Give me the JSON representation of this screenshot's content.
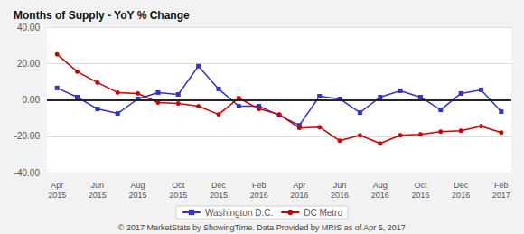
{
  "chart_data": {
    "type": "line",
    "title": "Months of Supply - YoY % Change",
    "annotations": [
      "© 2017 MarketStats by ShowingTime. Data Provided by MRIS as of Apr 5, 2017"
    ],
    "categories": [
      "Apr\n2015",
      null,
      "Jun\n2015",
      null,
      "Aug\n2015",
      null,
      "Oct\n2015",
      null,
      "Dec\n2015",
      null,
      "Feb\n2016",
      null,
      "Apr\n2016",
      null,
      "Jun\n2016",
      null,
      "Aug\n2016",
      null,
      "Oct\n2016",
      null,
      "Dec\n2016",
      null,
      "Feb\n2017"
    ],
    "series": [
      {
        "name": "Washington D.C.",
        "color": "#3333cc",
        "marker": "square",
        "values": [
          6.5,
          1.5,
          -5.0,
          -7.5,
          0.5,
          4.0,
          3.0,
          18.5,
          6.0,
          -3.5,
          -3.5,
          -8.5,
          -14.0,
          2.0,
          0.5,
          -7.0,
          1.5,
          5.0,
          1.5,
          -5.5,
          3.5,
          5.5,
          -6.5
        ]
      },
      {
        "name": "DC Metro",
        "color": "#cc0000",
        "marker": "circle",
        "values": [
          25.0,
          15.5,
          9.5,
          4.0,
          3.5,
          -1.5,
          -2.0,
          -3.5,
          -8.0,
          1.0,
          -5.0,
          -8.0,
          -15.5,
          -15.0,
          -22.5,
          -19.5,
          -24.0,
          -19.5,
          -19.0,
          -17.5,
          -17.0,
          -14.5,
          -18.0
        ]
      }
    ],
    "ylim": [
      -40,
      40
    ],
    "yticks": [
      {
        "value": -40,
        "label": "-40.00"
      },
      {
        "value": -20,
        "label": "-20.00"
      },
      {
        "value": 0,
        "label": "0.00"
      },
      {
        "value": 20,
        "label": "20.00"
      },
      {
        "value": 40,
        "label": "40.00"
      }
    ],
    "grid": true,
    "legend": "bottom"
  }
}
